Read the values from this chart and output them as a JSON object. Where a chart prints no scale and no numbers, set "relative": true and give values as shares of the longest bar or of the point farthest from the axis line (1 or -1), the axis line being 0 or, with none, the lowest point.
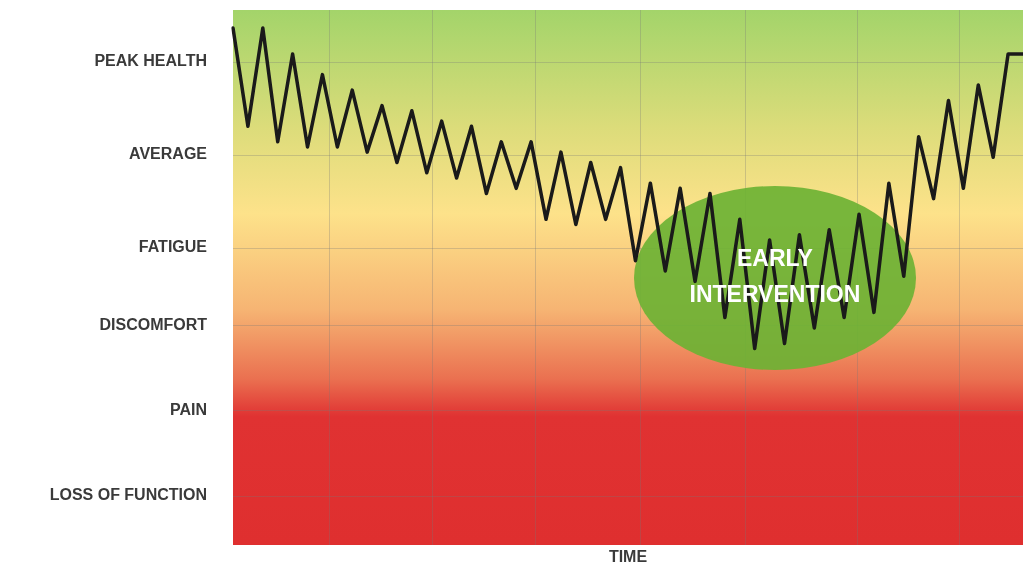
{
  "chart_data": {
    "type": "line",
    "relative": true,
    "xlabel": "TIME",
    "marker": "none",
    "line_style": "solid",
    "categories": [
      null,
      null,
      null,
      null,
      null,
      null,
      null,
      null,
      null,
      null,
      null,
      null,
      null,
      null,
      null,
      null,
      null,
      null,
      null,
      null,
      null,
      null,
      null,
      null,
      null,
      null,
      null,
      null,
      null,
      null,
      null,
      null,
      null,
      null,
      null,
      null,
      null,
      null,
      null,
      null,
      null,
      null,
      null,
      null,
      null,
      null,
      null,
      null,
      null,
      null,
      null,
      null,
      null,
      null
    ],
    "series": [
      {
        "color": "#1a1a1a",
        "values": [
          1.0,
          0.81,
          1.0,
          0.78,
          0.95,
          0.77,
          0.91,
          0.77,
          0.88,
          0.76,
          0.85,
          0.74,
          0.84,
          0.72,
          0.82,
          0.71,
          0.81,
          0.68,
          0.78,
          0.69,
          0.78,
          0.63,
          0.76,
          0.62,
          0.74,
          0.63,
          0.73,
          0.55,
          0.7,
          0.53,
          0.69,
          0.51,
          0.68,
          0.44,
          0.63,
          0.38,
          0.59,
          0.39,
          0.6,
          0.42,
          0.61,
          0.44,
          0.64,
          0.45,
          0.7,
          0.52,
          0.79,
          0.67,
          0.86,
          0.69,
          0.89,
          0.75,
          0.95,
          0.95
        ]
      }
    ],
    "annotations": [
      "EARLY INTERVENTION",
      "PEAK HEALTH",
      "AVERAGE",
      "FATIGUE",
      "DISCOMFORT",
      "PAIN",
      "LOSS OF FUNCTION"
    ]
  }
}
